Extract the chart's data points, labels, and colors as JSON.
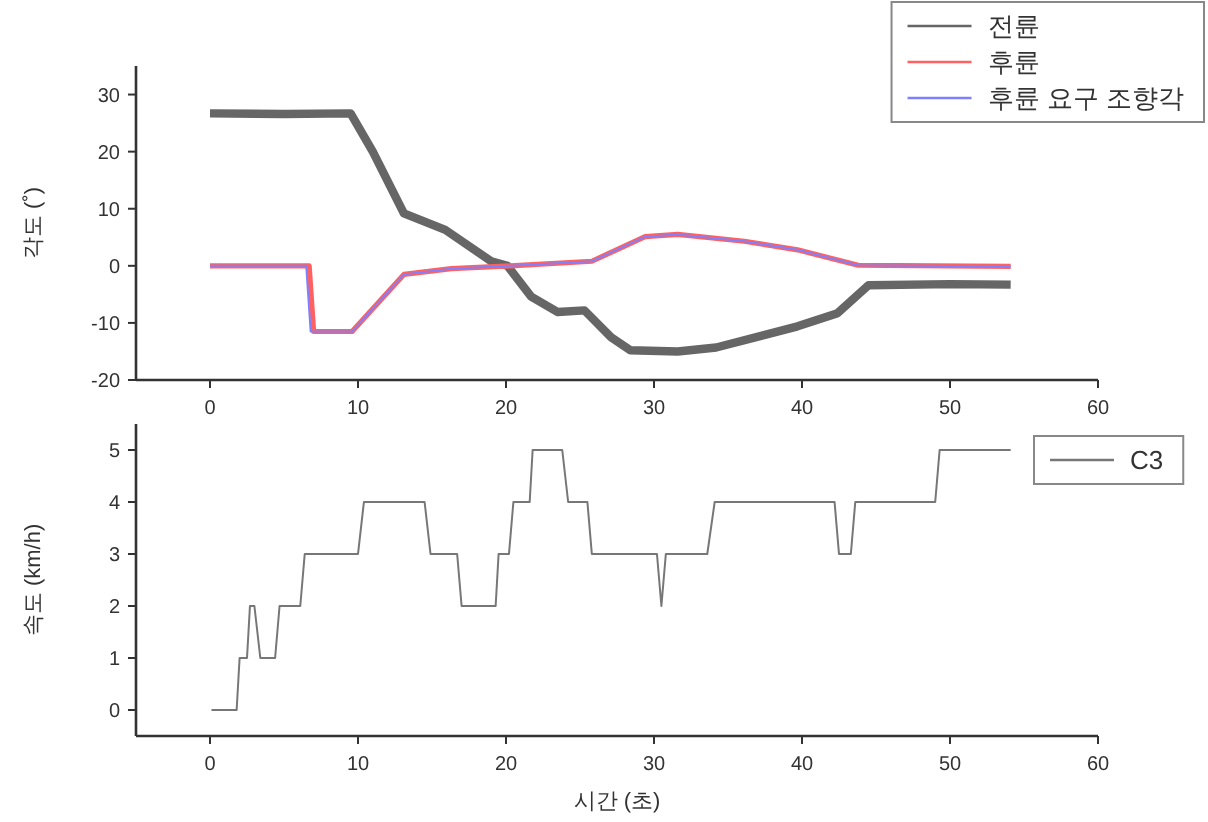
{
  "chart_data": [
    {
      "type": "line",
      "ylabel": "각도 (˚)",
      "xlim": [
        -5,
        60
      ],
      "xticks": [
        0,
        10,
        20,
        30,
        40,
        50,
        60
      ],
      "ylim": [
        -20,
        35
      ],
      "yticks": [
        -20,
        -10,
        0,
        10,
        20,
        30
      ],
      "grid": false,
      "legend": "top right",
      "series": [
        {
          "name": "전륜",
          "color": "#666666",
          "x": [
            0,
            5,
            9.5,
            11,
            13.1,
            15.9,
            19,
            20.1,
            21.7,
            23.5,
            25.3,
            27.1,
            28.4,
            31.6,
            34.2,
            39.7,
            42.4,
            44.5,
            50,
            54.1
          ],
          "values": [
            26.7,
            26.6,
            26.7,
            20,
            9.2,
            6.3,
            0.8,
            0,
            -5.4,
            -8.1,
            -7.8,
            -12.5,
            -14.8,
            -15,
            -14.3,
            -10.6,
            -8.3,
            -3.4,
            -3.2,
            -3.3
          ]
        },
        {
          "name": "후륜",
          "color": "#ff6060",
          "x": [
            0,
            6.7,
            7.0,
            9.6,
            13.1,
            16.3,
            20.3,
            25.8,
            29.4,
            31.6,
            36.1,
            39.7,
            43.8,
            54.1
          ],
          "values": [
            0,
            0,
            -11.5,
            -11.5,
            -1.5,
            -0.5,
            0,
            0.8,
            5.1,
            5.5,
            4.3,
            2.8,
            0.1,
            -0.1
          ]
        },
        {
          "name": "후륜 요구 조향각",
          "color": "#8080ff",
          "x": [
            0,
            6.5,
            6.8,
            9.6,
            13.1,
            16.3,
            20.3,
            25.8,
            29.4,
            31.6,
            36.1,
            39.7,
            43.8,
            54.1
          ],
          "values": [
            0,
            0,
            -11.5,
            -11.5,
            -1.5,
            -0.5,
            0,
            0.8,
            5.1,
            5.5,
            4.3,
            2.8,
            0.1,
            -0.1
          ]
        }
      ]
    },
    {
      "type": "line",
      "xlabel": "시간 (초)",
      "ylabel": "속도 (km/h)",
      "xlim": [
        -5,
        60
      ],
      "xticks": [
        0,
        10,
        20,
        30,
        40,
        50,
        60
      ],
      "ylim": [
        -0.5,
        5.5
      ],
      "yticks": [
        0,
        1,
        2,
        3,
        4,
        5
      ],
      "grid": false,
      "legend": "right",
      "series": [
        {
          "name": "C3",
          "color": "#777777",
          "x": [
            0.1,
            1.8,
            2.0,
            2.5,
            2.7,
            3.0,
            3.4,
            4.4,
            4.7,
            6.1,
            6.4,
            10.0,
            10.4,
            14.5,
            14.9,
            16.7,
            17.0,
            19.3,
            19.5,
            20.2,
            20.5,
            21.6,
            21.8,
            23.8,
            24.2,
            25.5,
            25.8,
            30.2,
            30.5,
            30.8,
            33.6,
            34.1,
            42.2,
            42.5,
            43.3,
            43.6,
            49.0,
            49.3,
            54.1
          ],
          "values": [
            0,
            0,
            1,
            1,
            2,
            2,
            1,
            1,
            2,
            2,
            3,
            3,
            4,
            4,
            3,
            3,
            2,
            2,
            3,
            3,
            4,
            4,
            5,
            5,
            4,
            4,
            3,
            3,
            2,
            3,
            3,
            4,
            4,
            3,
            3,
            4,
            4,
            5,
            5
          ]
        }
      ]
    }
  ]
}
